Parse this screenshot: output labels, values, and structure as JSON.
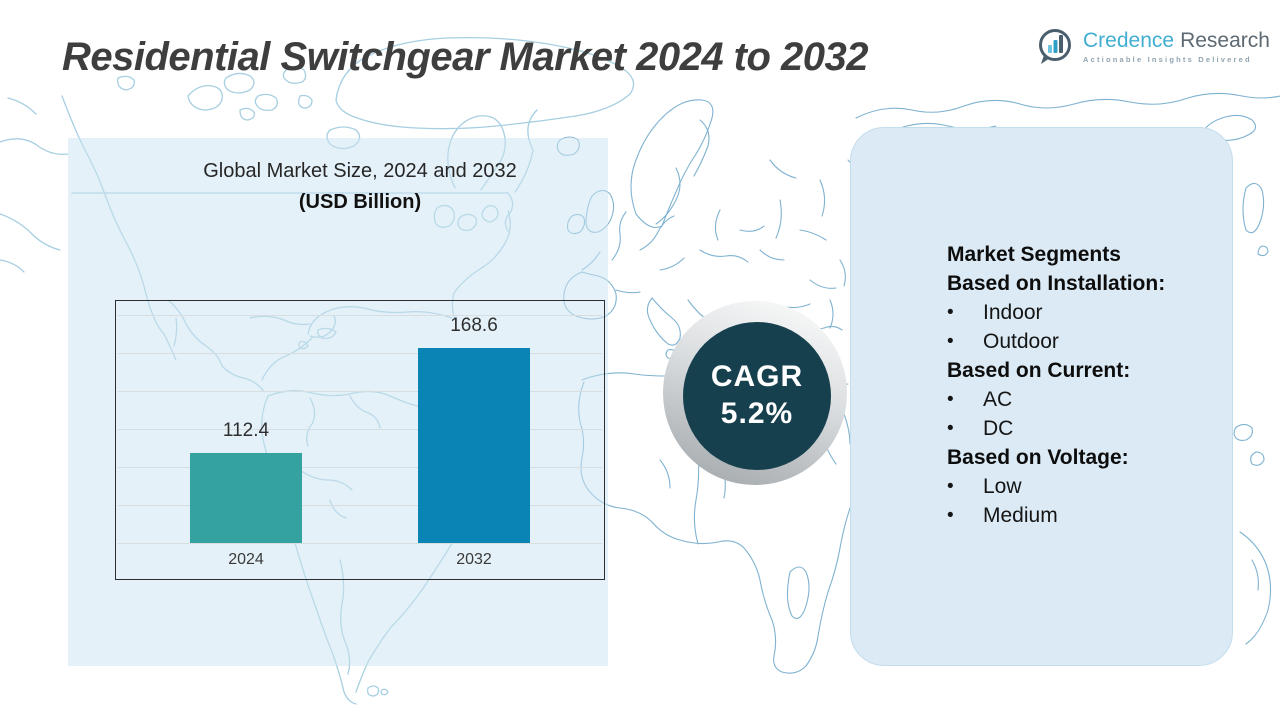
{
  "page_title": "Residential Switchgear Market 2024 to 2032",
  "logo": {
    "brand_primary": "Credence",
    "brand_secondary": "Research",
    "tagline": "Actionable Insights Delivered"
  },
  "chart_data": {
    "type": "bar",
    "title": "Global Market Size, 2024 and 2032",
    "subtitle": "(USD Billion)",
    "categories": [
      "2024",
      "2032"
    ],
    "values": [
      112.4,
      168.6
    ],
    "bar_colors": [
      "#35a2a2",
      "#0a84b5"
    ],
    "ylim": [
      64,
      194
    ],
    "gridline_count": 7,
    "grid": "horizontal",
    "legend": "none"
  },
  "cagr": {
    "label": "CAGR",
    "value": "5.2%"
  },
  "segments": {
    "bullet": "•",
    "lines": [
      {
        "text": "Market Segments"
      },
      {
        "text": "Based on Installation:"
      },
      {
        "text": "Indoor"
      },
      {
        "text": "Outdoor"
      },
      {
        "text": "Based on Current:"
      },
      {
        "text": "AC"
      },
      {
        "text": "DC"
      },
      {
        "text": "Based on Voltage:"
      },
      {
        "text": "Low"
      },
      {
        "text": "Medium"
      }
    ]
  },
  "colors": {
    "cagr_circle": "#17404f",
    "left_panel_bg": "rgba(203,228,241,0.5)",
    "right_panel_bg": "#dbeaf4",
    "map_stroke_light": "#a6cfe1",
    "map_stroke_medium": "#7fb2d0"
  }
}
